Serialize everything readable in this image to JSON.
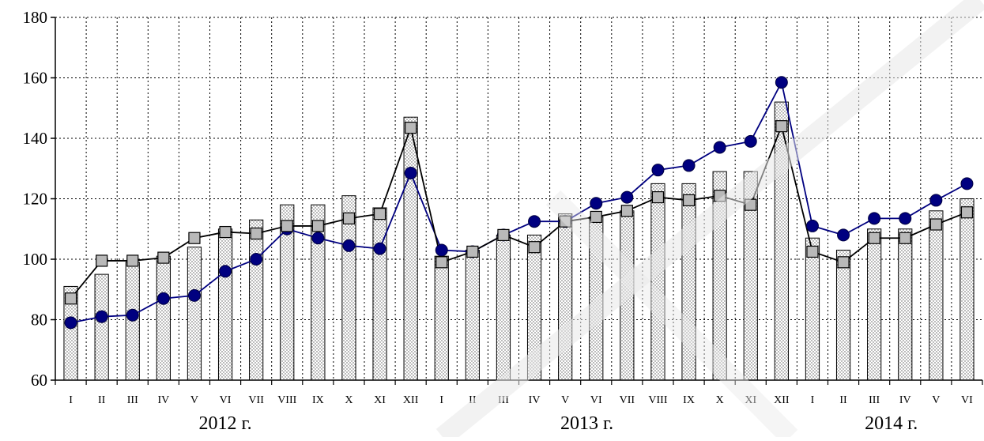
{
  "chart_data": {
    "type": "bar",
    "ylim": [
      60,
      180
    ],
    "yticks": [
      60,
      80,
      100,
      120,
      140,
      160,
      180
    ],
    "grid": true,
    "categories": [
      "I",
      "II",
      "III",
      "IV",
      "V",
      "VI",
      "VII",
      "VIII",
      "IX",
      "X",
      "XI",
      "XII",
      "I",
      "II",
      "III",
      "IV",
      "V",
      "VI",
      "VII",
      "VIII",
      "IX",
      "X",
      "XI",
      "XII",
      "I",
      "II",
      "III",
      "IV",
      "V",
      "VI"
    ],
    "year_labels": [
      "2012 г.",
      "2013 г.",
      "2014 г."
    ],
    "series": [
      {
        "kind": "bar",
        "values": [
          91,
          95,
          99,
          101,
          104,
          110,
          113,
          118,
          118,
          121,
          117,
          147,
          101,
          103,
          108,
          108,
          115,
          114,
          116,
          125,
          125,
          129,
          129,
          152,
          107,
          103,
          110,
          110,
          116,
          120
        ]
      },
      {
        "kind": "line-square",
        "values": [
          87,
          99.5,
          99.5,
          100.5,
          107,
          109,
          108.5,
          111,
          111,
          113.5,
          115,
          143.5,
          99,
          102.5,
          108,
          104,
          112.5,
          114,
          116,
          120.5,
          119.5,
          121,
          118,
          144,
          102.5,
          99,
          107,
          107,
          111.5,
          115.5
        ]
      },
      {
        "kind": "line-circle",
        "values": [
          79,
          81,
          81.5,
          87,
          88,
          96,
          100,
          110,
          107,
          104.5,
          103.5,
          128.5,
          103,
          102.5,
          108,
          112.5,
          112.5,
          118.5,
          120.5,
          129.5,
          131,
          137,
          139,
          158.5,
          111,
          108,
          113.5,
          113.5,
          119.5,
          125
        ]
      }
    ],
    "colors": {
      "bar_fill": "#e4e4e4",
      "square_fill": "#b9b9b9",
      "circle_line": "#000080",
      "square_line": "#000000",
      "watermark": "#e8e8e8"
    }
  }
}
